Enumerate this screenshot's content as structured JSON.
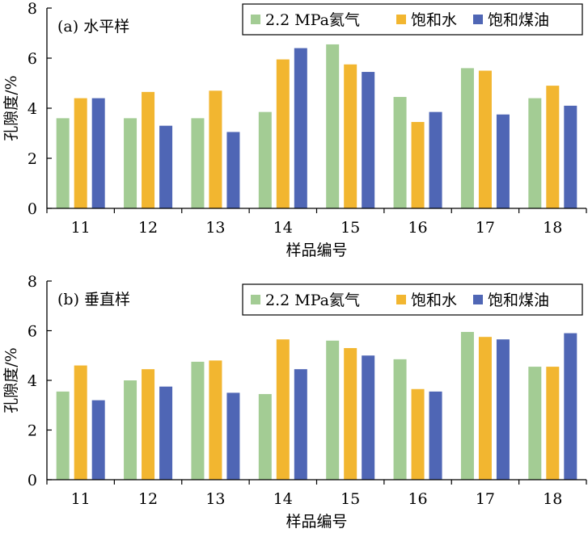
{
  "colors": {
    "series_0": "#a3cc94",
    "series_1": "#f2b630",
    "series_2": "#4f66b5",
    "axis": "#000000",
    "background": "#ffffff"
  },
  "chart_data": [
    {
      "type": "bar",
      "title": "(a) 水平样",
      "xlabel": "样品编号",
      "ylabel": "孔隙度/%",
      "ylim": [
        0,
        8
      ],
      "yticks": [
        0,
        2,
        4,
        6,
        8
      ],
      "grid": false,
      "legend": "top-right",
      "categories": [
        "11",
        "12",
        "13",
        "14",
        "15",
        "16",
        "17",
        "18"
      ],
      "series": [
        {
          "name": "2.2 MPa氦气",
          "values": [
            3.6,
            3.6,
            3.6,
            3.85,
            6.55,
            4.45,
            5.6,
            4.4
          ]
        },
        {
          "name": "饱和水",
          "values": [
            4.4,
            4.65,
            4.7,
            5.95,
            5.75,
            3.45,
            5.5,
            4.9
          ]
        },
        {
          "name": "饱和煤油",
          "values": [
            4.4,
            3.3,
            3.05,
            6.4,
            5.45,
            3.85,
            3.75,
            4.1
          ]
        }
      ]
    },
    {
      "type": "bar",
      "title": "(b) 垂直样",
      "xlabel": "样品编号",
      "ylabel": "孔隙度/%",
      "ylim": [
        0,
        8
      ],
      "yticks": [
        0,
        2,
        4,
        6,
        8
      ],
      "grid": false,
      "legend": "top-right",
      "categories": [
        "11",
        "12",
        "13",
        "14",
        "15",
        "16",
        "17",
        "18"
      ],
      "series": [
        {
          "name": "2.2 MPa氦气",
          "values": [
            3.55,
            4.0,
            4.75,
            3.45,
            5.6,
            4.85,
            5.95,
            4.55
          ]
        },
        {
          "name": "饱和水",
          "values": [
            4.6,
            4.45,
            4.8,
            5.65,
            5.3,
            3.65,
            5.75,
            4.55
          ]
        },
        {
          "name": "饱和煤油",
          "values": [
            3.2,
            3.75,
            3.5,
            4.45,
            5.0,
            3.55,
            5.65,
            5.9
          ]
        }
      ]
    }
  ]
}
